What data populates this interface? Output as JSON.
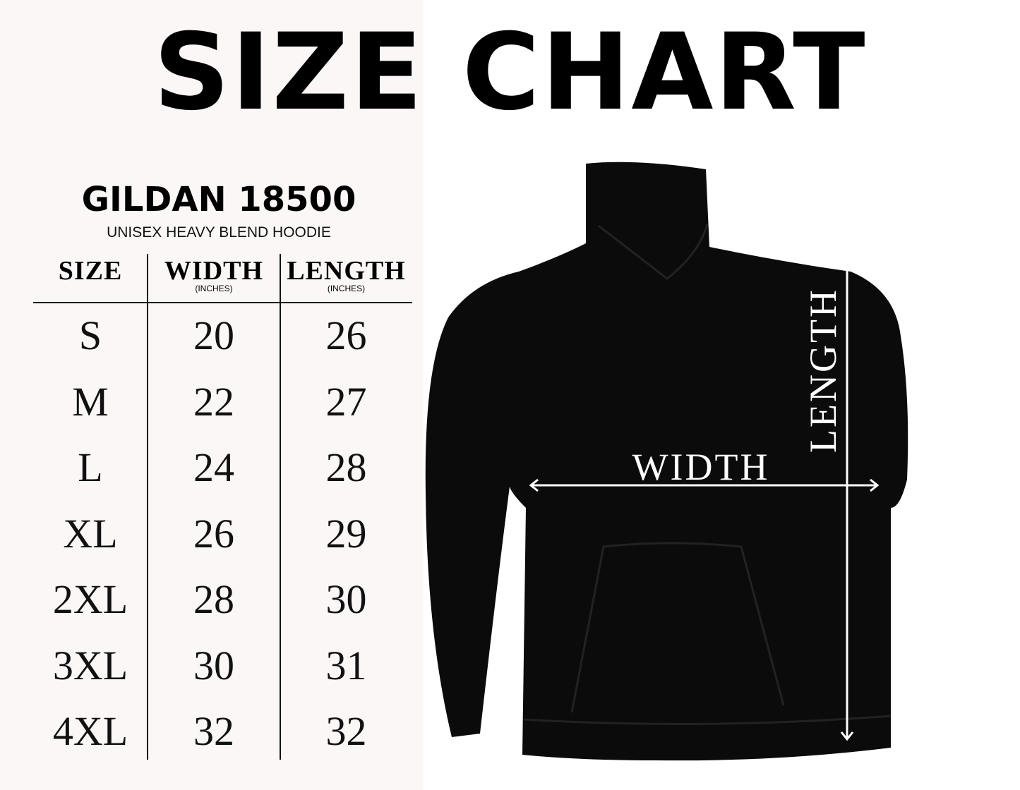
{
  "title": "SIZE CHART",
  "brand": "GILDAN 18500",
  "subtitle": "UNISEX HEAVY BLEND HOODIE",
  "headers": [
    {
      "label": "SIZE",
      "unit": ""
    },
    {
      "label": "WIDTH",
      "unit": "(INCHES)"
    },
    {
      "label": "LENGTH",
      "unit": "(INCHES)"
    }
  ],
  "rows": [
    {
      "size": "S",
      "width": "20",
      "length": "26"
    },
    {
      "size": "M",
      "width": "22",
      "length": "27"
    },
    {
      "size": "L",
      "width": "24",
      "length": "28"
    },
    {
      "size": "XL",
      "width": "26",
      "length": "29"
    },
    {
      "size": "2XL",
      "width": "28",
      "length": "30"
    },
    {
      "size": "3XL",
      "width": "30",
      "length": "31"
    },
    {
      "size": "4XL",
      "width": "32",
      "length": "32"
    }
  ],
  "diagram": {
    "width_label": "WIDTH",
    "length_label": "LENGTH",
    "garment_color": "#0b0b0b"
  },
  "colors": {
    "panel": "#fcf7f7",
    "text": "#000000"
  }
}
